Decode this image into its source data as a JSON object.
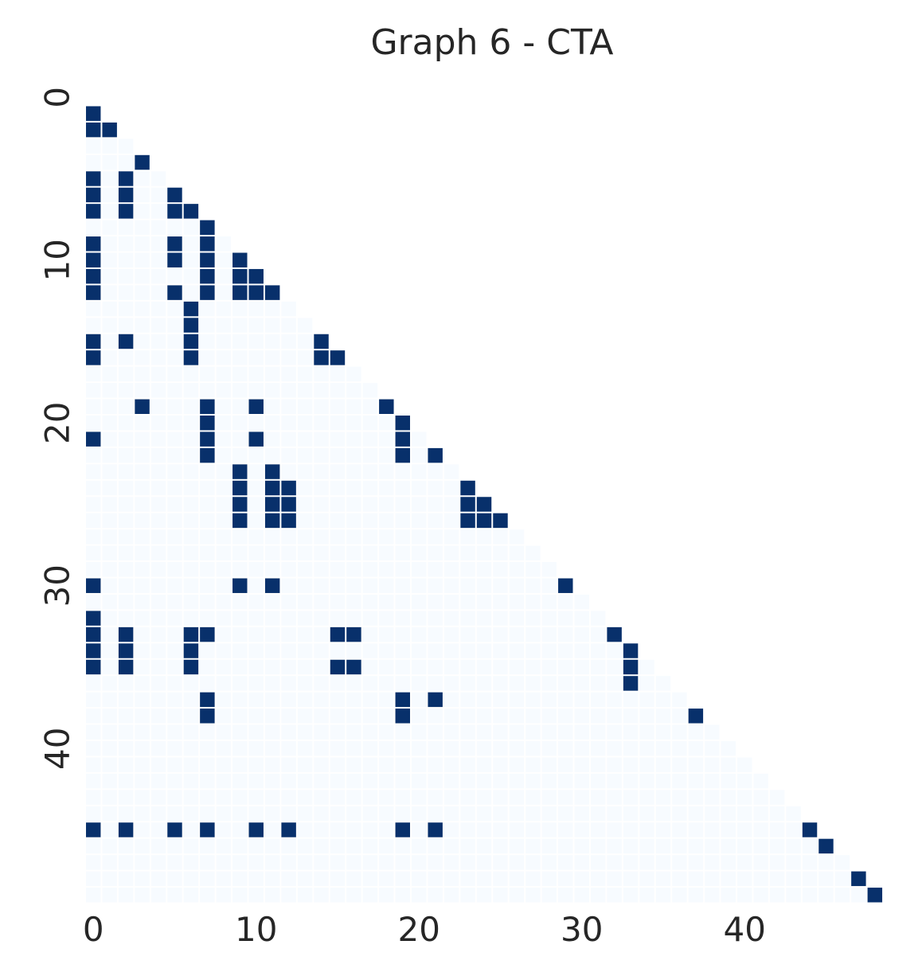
{
  "chart_data": {
    "type": "heatmap",
    "title": "Graph 6 - CTA",
    "xlabel": "",
    "ylabel": "",
    "n": 50,
    "mask": "lower-triangle",
    "x_ticks": [
      0,
      10,
      20,
      30,
      40
    ],
    "y_ticks": [
      0,
      10,
      20,
      30,
      40
    ],
    "x_tick_labels": [
      "0",
      "10",
      "20",
      "30",
      "40"
    ],
    "y_tick_labels": [
      "0",
      "10",
      "20",
      "30",
      "40"
    ],
    "grid": false,
    "colorbar": false,
    "colors": {
      "on": "#08306b",
      "off": "#f7fbff",
      "background": "#ffffff",
      "text": "#262626"
    },
    "filled_cells": [
      [
        1,
        0
      ],
      [
        2,
        0
      ],
      [
        2,
        1
      ],
      [
        4,
        3
      ],
      [
        5,
        0
      ],
      [
        5,
        2
      ],
      [
        6,
        0
      ],
      [
        6,
        2
      ],
      [
        6,
        5
      ],
      [
        7,
        0
      ],
      [
        7,
        2
      ],
      [
        7,
        5
      ],
      [
        7,
        6
      ],
      [
        8,
        7
      ],
      [
        9,
        0
      ],
      [
        9,
        5
      ],
      [
        9,
        7
      ],
      [
        10,
        0
      ],
      [
        10,
        5
      ],
      [
        10,
        7
      ],
      [
        10,
        9
      ],
      [
        11,
        0
      ],
      [
        11,
        7
      ],
      [
        11,
        9
      ],
      [
        11,
        10
      ],
      [
        12,
        0
      ],
      [
        12,
        5
      ],
      [
        12,
        7
      ],
      [
        12,
        9
      ],
      [
        12,
        10
      ],
      [
        12,
        11
      ],
      [
        13,
        6
      ],
      [
        14,
        6
      ],
      [
        15,
        0
      ],
      [
        15,
        2
      ],
      [
        15,
        6
      ],
      [
        15,
        14
      ],
      [
        16,
        0
      ],
      [
        16,
        6
      ],
      [
        16,
        14
      ],
      [
        16,
        15
      ],
      [
        19,
        3
      ],
      [
        19,
        7
      ],
      [
        19,
        10
      ],
      [
        19,
        18
      ],
      [
        20,
        7
      ],
      [
        20,
        19
      ],
      [
        21,
        0
      ],
      [
        21,
        7
      ],
      [
        21,
        10
      ],
      [
        21,
        19
      ],
      [
        22,
        7
      ],
      [
        22,
        19
      ],
      [
        22,
        21
      ],
      [
        23,
        9
      ],
      [
        23,
        11
      ],
      [
        24,
        9
      ],
      [
        24,
        11
      ],
      [
        24,
        12
      ],
      [
        24,
        23
      ],
      [
        25,
        9
      ],
      [
        25,
        11
      ],
      [
        25,
        12
      ],
      [
        25,
        23
      ],
      [
        25,
        24
      ],
      [
        26,
        9
      ],
      [
        26,
        11
      ],
      [
        26,
        12
      ],
      [
        26,
        23
      ],
      [
        26,
        24
      ],
      [
        26,
        25
      ],
      [
        30,
        0
      ],
      [
        30,
        9
      ],
      [
        30,
        11
      ],
      [
        30,
        29
      ],
      [
        32,
        0
      ],
      [
        33,
        0
      ],
      [
        33,
        2
      ],
      [
        33,
        6
      ],
      [
        33,
        7
      ],
      [
        33,
        15
      ],
      [
        33,
        16
      ],
      [
        33,
        32
      ],
      [
        34,
        0
      ],
      [
        34,
        2
      ],
      [
        34,
        6
      ],
      [
        34,
        33
      ],
      [
        35,
        0
      ],
      [
        35,
        2
      ],
      [
        35,
        6
      ],
      [
        35,
        15
      ],
      [
        35,
        16
      ],
      [
        35,
        33
      ],
      [
        36,
        33
      ],
      [
        37,
        7
      ],
      [
        37,
        19
      ],
      [
        37,
        21
      ],
      [
        38,
        7
      ],
      [
        38,
        19
      ],
      [
        38,
        37
      ],
      [
        45,
        0
      ],
      [
        45,
        2
      ],
      [
        45,
        5
      ],
      [
        45,
        7
      ],
      [
        45,
        10
      ],
      [
        45,
        12
      ],
      [
        45,
        19
      ],
      [
        45,
        21
      ],
      [
        45,
        44
      ],
      [
        46,
        45
      ],
      [
        48,
        47
      ],
      [
        49,
        48
      ]
    ]
  }
}
